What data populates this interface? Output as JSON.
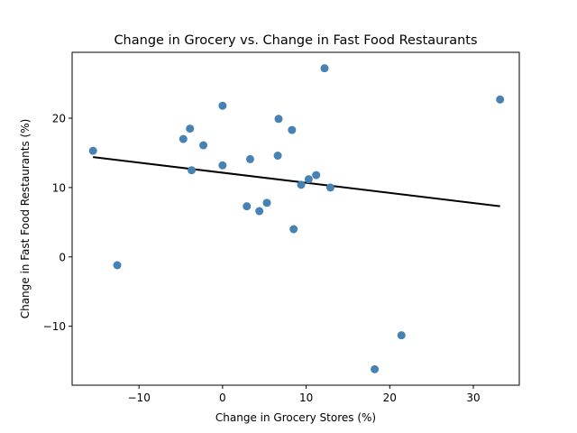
{
  "chart_data": {
    "type": "scatter",
    "title": "Change in Grocery vs. Change in Fast Food Restaurants",
    "xlabel": "Change in Grocery Stores (%)",
    "ylabel": "Change in Fast Food Restaurants (%)",
    "xlim": [
      -18,
      35.5
    ],
    "ylim": [
      -18.5,
      29.5
    ],
    "xticks": [
      -10,
      0,
      10,
      20,
      30
    ],
    "xtick_labels": [
      "−10",
      "0",
      "10",
      "20",
      "30"
    ],
    "yticks": [
      -10,
      0,
      10,
      20
    ],
    "ytick_labels": [
      "−10",
      "0",
      "10",
      "20"
    ],
    "grid": false,
    "colors": {
      "points": "#4682b4",
      "trendline": "#000000"
    },
    "points": [
      {
        "x": -15.5,
        "y": 15.3
      },
      {
        "x": -12.6,
        "y": -1.2
      },
      {
        "x": -4.7,
        "y": 17.0
      },
      {
        "x": -3.9,
        "y": 18.5
      },
      {
        "x": -3.7,
        "y": 12.5
      },
      {
        "x": -2.3,
        "y": 16.1
      },
      {
        "x": 0.0,
        "y": 21.8
      },
      {
        "x": 0.0,
        "y": 13.2
      },
      {
        "x": 2.9,
        "y": 7.3
      },
      {
        "x": 3.3,
        "y": 14.1
      },
      {
        "x": 4.4,
        "y": 6.6
      },
      {
        "x": 5.3,
        "y": 7.8
      },
      {
        "x": 6.6,
        "y": 14.6
      },
      {
        "x": 6.7,
        "y": 19.9
      },
      {
        "x": 8.3,
        "y": 18.3
      },
      {
        "x": 8.5,
        "y": 4.0
      },
      {
        "x": 9.4,
        "y": 10.4
      },
      {
        "x": 10.3,
        "y": 11.2
      },
      {
        "x": 11.2,
        "y": 11.8
      },
      {
        "x": 12.2,
        "y": 27.2
      },
      {
        "x": 12.9,
        "y": 10.0
      },
      {
        "x": 18.2,
        "y": -16.2
      },
      {
        "x": 21.4,
        "y": -11.3
      },
      {
        "x": 33.2,
        "y": 22.7
      }
    ],
    "trendline": {
      "x": [
        -15.5,
        33.2
      ],
      "y": [
        14.4,
        7.3
      ]
    }
  }
}
